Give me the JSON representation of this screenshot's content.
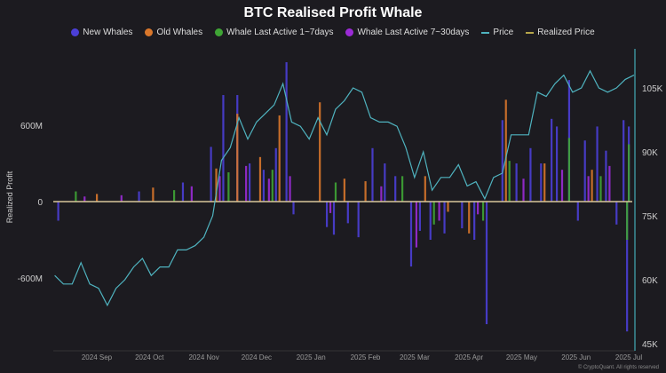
{
  "chart_data": {
    "type": "bar",
    "title": "BTC Realised Profit Whale",
    "ylabel": "Realized Profit",
    "y_left": {
      "ticks": [
        600,
        0,
        -600
      ],
      "tick_labels": [
        "600M",
        "0",
        "-600M"
      ],
      "unit": "M USD",
      "range": [
        -1150,
        1200
      ]
    },
    "y_right": {
      "ticks": [
        105,
        90,
        75,
        60,
        45
      ],
      "tick_labels": [
        "105K",
        "90K",
        "75K",
        "60K",
        "45K"
      ],
      "range": [
        45,
        115
      ]
    },
    "x": {
      "tick_labels": [
        "2024 Sep",
        "2024 Oct",
        "2024 Nov",
        "2024 Dec",
        "2025 Jan",
        "2025 Feb",
        "2025 Mar",
        "2025 Apr",
        "2025 May",
        "2025 Jun",
        "2025 Jul"
      ],
      "tick_dates": [
        "2024-09-01",
        "2024-10-01",
        "2024-11-01",
        "2024-12-01",
        "2025-01-01",
        "2025-02-01",
        "2025-03-01",
        "2025-04-01",
        "2025-05-01",
        "2025-06-01",
        "2025-07-01"
      ],
      "range": [
        "2024-08-08",
        "2025-07-04"
      ]
    },
    "legend": [
      {
        "name": "New Whales",
        "color": "#4b3fd6",
        "kind": "dot"
      },
      {
        "name": "Old Whales",
        "color": "#d9772b",
        "kind": "dot"
      },
      {
        "name": "Whale Last Active 1~7days",
        "color": "#3fa535",
        "kind": "dot"
      },
      {
        "name": "Whale Last Active 7~30days",
        "color": "#9b2bd6",
        "kind": "dot"
      },
      {
        "name": "Price",
        "color": "#4fb3bf",
        "kind": "line"
      },
      {
        "name": "Realized Price",
        "color": "#b5a64a",
        "kind": "line"
      }
    ],
    "legend_position": "top-center",
    "series": [
      {
        "name": "New Whales",
        "color": "#4b3fd6",
        "points": [
          [
            "2024-08-10",
            -150
          ],
          [
            "2024-09-25",
            80
          ],
          [
            "2024-10-20",
            150
          ],
          [
            "2024-11-05",
            430
          ],
          [
            "2024-11-12",
            837
          ],
          [
            "2024-11-20",
            837
          ],
          [
            "2024-11-27",
            300
          ],
          [
            "2024-12-05",
            250
          ],
          [
            "2024-12-12",
            420
          ],
          [
            "2024-12-18",
            1095
          ],
          [
            "2024-12-22",
            -100
          ],
          [
            "2025-01-10",
            -200
          ],
          [
            "2025-01-14",
            -260
          ],
          [
            "2025-01-22",
            -170
          ],
          [
            "2025-01-28",
            -280
          ],
          [
            "2025-02-05",
            420
          ],
          [
            "2025-02-12",
            300
          ],
          [
            "2025-02-18",
            200
          ],
          [
            "2025-02-27",
            -510
          ],
          [
            "2025-03-04",
            -230
          ],
          [
            "2025-03-10",
            -300
          ],
          [
            "2025-03-18",
            -250
          ],
          [
            "2025-03-28",
            -210
          ],
          [
            "2025-04-04",
            -300
          ],
          [
            "2025-04-11",
            -963
          ],
          [
            "2025-04-20",
            640
          ],
          [
            "2025-04-28",
            300
          ],
          [
            "2025-05-06",
            420
          ],
          [
            "2025-05-12",
            300
          ],
          [
            "2025-05-18",
            650
          ],
          [
            "2025-05-21",
            590
          ],
          [
            "2025-05-28",
            955
          ],
          [
            "2025-06-02",
            -150
          ],
          [
            "2025-06-06",
            480
          ],
          [
            "2025-06-13",
            590
          ],
          [
            "2025-06-18",
            400
          ],
          [
            "2025-06-24",
            -180
          ],
          [
            "2025-06-28",
            640
          ],
          [
            "2025-06-30",
            -1020
          ],
          [
            "2025-07-01",
            590
          ]
        ]
      },
      {
        "name": "Old Whales",
        "color": "#d9772b",
        "points": [
          [
            "2024-09-01",
            60
          ],
          [
            "2024-10-03",
            110
          ],
          [
            "2024-11-08",
            260
          ],
          [
            "2024-11-20",
            690
          ],
          [
            "2024-12-03",
            350
          ],
          [
            "2024-12-14",
            677
          ],
          [
            "2025-01-06",
            780
          ],
          [
            "2025-01-20",
            180
          ],
          [
            "2025-02-01",
            160
          ],
          [
            "2025-03-07",
            200
          ],
          [
            "2025-03-20",
            -80
          ],
          [
            "2025-04-01",
            -250
          ],
          [
            "2025-04-22",
            800
          ],
          [
            "2025-05-14",
            300
          ],
          [
            "2025-06-10",
            250
          ]
        ]
      },
      {
        "name": "Whale Last Active 1~7days",
        "color": "#3fa535",
        "points": [
          [
            "2024-08-20",
            80
          ],
          [
            "2024-10-15",
            90
          ],
          [
            "2024-11-15",
            230
          ],
          [
            "2024-12-10",
            250
          ],
          [
            "2025-01-15",
            150
          ],
          [
            "2025-02-22",
            200
          ],
          [
            "2025-03-12",
            -180
          ],
          [
            "2025-04-09",
            -150
          ],
          [
            "2025-04-24",
            320
          ],
          [
            "2025-05-28",
            500
          ],
          [
            "2025-06-15",
            200
          ],
          [
            "2025-06-30",
            -300
          ],
          [
            "2025-07-01",
            450
          ]
        ]
      },
      {
        "name": "Whale Last Active 7~30days",
        "color": "#9b2bd6",
        "points": [
          [
            "2024-08-25",
            40
          ],
          [
            "2024-09-15",
            50
          ],
          [
            "2024-10-25",
            120
          ],
          [
            "2024-11-10",
            200
          ],
          [
            "2024-11-25",
            280
          ],
          [
            "2024-12-08",
            180
          ],
          [
            "2024-12-20",
            200
          ],
          [
            "2025-01-12",
            -90
          ],
          [
            "2025-02-10",
            120
          ],
          [
            "2025-03-02",
            -360
          ],
          [
            "2025-03-15",
            -150
          ],
          [
            "2025-04-06",
            -100
          ],
          [
            "2025-05-02",
            180
          ],
          [
            "2025-05-24",
            250
          ],
          [
            "2025-06-08",
            200
          ],
          [
            "2025-06-20",
            280
          ]
        ]
      }
    ],
    "price": {
      "name": "Price",
      "unit": "K USD",
      "start": "2024-08-08",
      "step_days": 5,
      "values": [
        61,
        59,
        59,
        64,
        59,
        58,
        54,
        58,
        60,
        63,
        65,
        61,
        63,
        63,
        67,
        67,
        68,
        70,
        75,
        88,
        91,
        98,
        93,
        97,
        99,
        101,
        106,
        97,
        96,
        93,
        98,
        94,
        100,
        102,
        105,
        104,
        98,
        97,
        97,
        96,
        91,
        84,
        90,
        81,
        84,
        84,
        87,
        82,
        83,
        79,
        84,
        85,
        94,
        94,
        94,
        104,
        103,
        106,
        108,
        104,
        105,
        109,
        105,
        104,
        105,
        107,
        108
      ]
    },
    "realized_price": {
      "name": "Realized Price",
      "level": 0
    }
  },
  "footer": "© CryptoQuant. All rights reserved"
}
